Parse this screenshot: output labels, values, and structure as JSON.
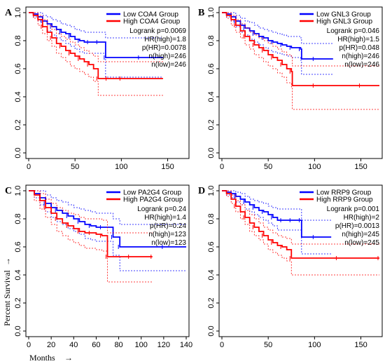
{
  "axis_titles": {
    "x": "Months",
    "y": "Percent Survival"
  },
  "colors": {
    "low": "#0000ff",
    "high": "#ff0000"
  },
  "chart_data": [
    {
      "type": "line",
      "panel": "A",
      "xlim": [
        0,
        170
      ],
      "ylim": [
        0,
        1
      ],
      "xticks": [
        0,
        50,
        100,
        150
      ],
      "yticks": [
        0.0,
        0.2,
        0.4,
        0.6,
        0.8,
        1.0
      ],
      "legend": [
        "Low COA4 Group",
        "High COA4 Group"
      ],
      "stats": [
        "Logrank p=0.0069",
        "HR(high)=1.8",
        "p(HR)=0.0078",
        "n(high)=246",
        "n(low)=246"
      ],
      "series": [
        {
          "name": "Low COA4 Group",
          "x": [
            0,
            5,
            10,
            15,
            20,
            25,
            30,
            35,
            40,
            45,
            50,
            55,
            60,
            65,
            70,
            75,
            82,
            83,
            100,
            120,
            145
          ],
          "y": [
            1.0,
            0.99,
            0.97,
            0.94,
            0.92,
            0.9,
            0.88,
            0.86,
            0.85,
            0.83,
            0.81,
            0.8,
            0.79,
            0.79,
            0.79,
            0.79,
            0.79,
            0.68,
            0.68,
            0.68,
            0.68
          ],
          "upper": [
            1.0,
            1.0,
            1.0,
            0.98,
            0.97,
            0.95,
            0.94,
            0.92,
            0.91,
            0.9,
            0.88,
            0.87,
            0.86,
            0.86,
            0.86,
            0.86,
            0.86,
            0.82,
            0.82,
            0.82,
            0.82
          ],
          "lower": [
            1.0,
            0.97,
            0.94,
            0.9,
            0.87,
            0.84,
            0.82,
            0.8,
            0.78,
            0.76,
            0.74,
            0.72,
            0.71,
            0.71,
            0.71,
            0.71,
            0.71,
            0.54,
            0.54,
            0.54,
            0.54
          ]
        },
        {
          "name": "High COA4 Group",
          "x": [
            0,
            5,
            10,
            15,
            20,
            25,
            30,
            35,
            40,
            45,
            50,
            55,
            60,
            65,
            70,
            75,
            80,
            85,
            90,
            100,
            145
          ],
          "y": [
            1.0,
            0.98,
            0.95,
            0.9,
            0.86,
            0.82,
            0.78,
            0.76,
            0.73,
            0.71,
            0.69,
            0.67,
            0.65,
            0.63,
            0.6,
            0.53,
            0.53,
            0.53,
            0.53,
            0.53,
            0.53
          ],
          "upper": [
            1.0,
            1.0,
            0.98,
            0.95,
            0.91,
            0.88,
            0.85,
            0.83,
            0.81,
            0.79,
            0.77,
            0.75,
            0.73,
            0.71,
            0.69,
            0.65,
            0.65,
            0.65,
            0.65,
            0.65,
            0.65
          ],
          "lower": [
            1.0,
            0.96,
            0.91,
            0.85,
            0.8,
            0.76,
            0.71,
            0.68,
            0.65,
            0.62,
            0.6,
            0.58,
            0.56,
            0.54,
            0.51,
            0.41,
            0.41,
            0.41,
            0.41,
            0.41,
            0.41
          ]
        }
      ]
    },
    {
      "type": "line",
      "panel": "B",
      "xlim": [
        0,
        170
      ],
      "ylim": [
        0,
        1
      ],
      "xticks": [
        0,
        50,
        100,
        150
      ],
      "yticks": [
        0.0,
        0.2,
        0.4,
        0.6,
        0.8,
        1.0
      ],
      "legend": [
        "Low GNL3 Group",
        "High GNL3 Group"
      ],
      "stats": [
        "Logrank p=0.046",
        "HR(high)=1.5",
        "p(HR)=0.048",
        "n(high)=246",
        "n(low)=246"
      ],
      "series": [
        {
          "name": "Low GNL3 Group",
          "x": [
            0,
            5,
            10,
            15,
            20,
            25,
            30,
            35,
            40,
            45,
            50,
            55,
            60,
            65,
            70,
            75,
            80,
            85,
            86,
            100,
            120
          ],
          "y": [
            1.0,
            0.99,
            0.97,
            0.94,
            0.91,
            0.89,
            0.87,
            0.85,
            0.83,
            0.82,
            0.8,
            0.79,
            0.78,
            0.77,
            0.76,
            0.75,
            0.75,
            0.74,
            0.67,
            0.67,
            0.67
          ],
          "upper": [
            1.0,
            1.0,
            1.0,
            0.98,
            0.96,
            0.94,
            0.93,
            0.91,
            0.89,
            0.88,
            0.87,
            0.86,
            0.85,
            0.84,
            0.83,
            0.83,
            0.83,
            0.82,
            0.78,
            0.78,
            0.78
          ],
          "lower": [
            1.0,
            0.97,
            0.94,
            0.9,
            0.86,
            0.84,
            0.81,
            0.79,
            0.77,
            0.75,
            0.73,
            0.72,
            0.71,
            0.7,
            0.69,
            0.68,
            0.68,
            0.66,
            0.56,
            0.56,
            0.56
          ]
        },
        {
          "name": "High GNL3 Group",
          "x": [
            0,
            5,
            10,
            15,
            20,
            25,
            30,
            35,
            40,
            45,
            50,
            55,
            60,
            65,
            70,
            75,
            76,
            100,
            125,
            150,
            170
          ],
          "y": [
            1.0,
            0.98,
            0.95,
            0.91,
            0.87,
            0.83,
            0.8,
            0.77,
            0.75,
            0.73,
            0.7,
            0.68,
            0.66,
            0.63,
            0.6,
            0.58,
            0.48,
            0.48,
            0.48,
            0.48,
            0.48
          ],
          "upper": [
            1.0,
            1.0,
            0.98,
            0.95,
            0.92,
            0.89,
            0.86,
            0.84,
            0.82,
            0.8,
            0.78,
            0.76,
            0.74,
            0.72,
            0.7,
            0.69,
            0.62,
            0.62,
            0.62,
            0.62,
            0.62
          ],
          "lower": [
            1.0,
            0.96,
            0.91,
            0.86,
            0.82,
            0.77,
            0.74,
            0.7,
            0.68,
            0.65,
            0.62,
            0.6,
            0.57,
            0.54,
            0.5,
            0.47,
            0.31,
            0.31,
            0.31,
            0.31,
            0.31
          ]
        }
      ]
    },
    {
      "type": "line",
      "panel": "C",
      "xlim": [
        0,
        140
      ],
      "ylim": [
        0,
        1
      ],
      "xticks": [
        0,
        20,
        40,
        60,
        80,
        100,
        120,
        140
      ],
      "yticks": [
        0.0,
        0.2,
        0.4,
        0.6,
        0.8,
        1.0
      ],
      "legend": [
        "Low PA2G4 Group",
        "High PA2G4 Group"
      ],
      "stats": [
        "Logrank p=0.24",
        "HR(high)=1.4",
        "p(HR)=0.24",
        "n(high)=123",
        "n(low)=123"
      ],
      "series": [
        {
          "name": "Low PA2G4 Group",
          "x": [
            0,
            5,
            10,
            15,
            20,
            25,
            30,
            35,
            40,
            45,
            50,
            55,
            60,
            65,
            70,
            75,
            80,
            81,
            100,
            120,
            140
          ],
          "y": [
            1.0,
            0.98,
            0.95,
            0.91,
            0.88,
            0.86,
            0.84,
            0.82,
            0.8,
            0.78,
            0.76,
            0.75,
            0.74,
            0.74,
            0.74,
            0.67,
            0.67,
            0.6,
            0.6,
            0.6,
            0.6
          ],
          "upper": [
            1.0,
            1.0,
            1.0,
            0.97,
            0.95,
            0.93,
            0.92,
            0.9,
            0.88,
            0.87,
            0.86,
            0.85,
            0.84,
            0.84,
            0.84,
            0.8,
            0.8,
            0.76,
            0.76,
            0.76,
            0.76
          ],
          "lower": [
            1.0,
            0.95,
            0.9,
            0.85,
            0.81,
            0.78,
            0.76,
            0.73,
            0.71,
            0.69,
            0.66,
            0.65,
            0.64,
            0.64,
            0.64,
            0.54,
            0.54,
            0.43,
            0.43,
            0.43,
            0.43
          ]
        },
        {
          "name": "High PA2G4 Group",
          "x": [
            0,
            5,
            10,
            15,
            20,
            25,
            30,
            35,
            40,
            45,
            50,
            55,
            60,
            65,
            69,
            70,
            80,
            90,
            100,
            110
          ],
          "y": [
            1.0,
            0.97,
            0.93,
            0.88,
            0.84,
            0.8,
            0.77,
            0.75,
            0.73,
            0.71,
            0.7,
            0.7,
            0.69,
            0.68,
            0.68,
            0.53,
            0.53,
            0.53,
            0.53,
            0.53
          ],
          "upper": [
            1.0,
            1.0,
            0.98,
            0.94,
            0.91,
            0.88,
            0.86,
            0.84,
            0.83,
            0.81,
            0.8,
            0.8,
            0.8,
            0.79,
            0.79,
            0.7,
            0.7,
            0.7,
            0.7,
            0.7
          ],
          "lower": [
            1.0,
            0.93,
            0.87,
            0.81,
            0.76,
            0.71,
            0.68,
            0.65,
            0.63,
            0.61,
            0.59,
            0.59,
            0.58,
            0.57,
            0.57,
            0.35,
            0.35,
            0.35,
            0.35,
            0.35
          ]
        }
      ]
    },
    {
      "type": "line",
      "panel": "D",
      "xlim": [
        0,
        170
      ],
      "ylim": [
        0,
        1
      ],
      "xticks": [
        0,
        50,
        100,
        150
      ],
      "yticks": [
        0.0,
        0.2,
        0.4,
        0.6,
        0.8,
        1.0
      ],
      "legend": [
        "Low RRP9 Group",
        "High RRP9 Group"
      ],
      "stats": [
        "Logrank p=0.001",
        "HR(high)=2",
        "p(HR)=0.0013",
        "n(high)=245",
        "n(low)=245"
      ],
      "series": [
        {
          "name": "Low RRP9 Group",
          "x": [
            0,
            5,
            10,
            15,
            20,
            25,
            30,
            35,
            40,
            45,
            50,
            55,
            60,
            65,
            70,
            75,
            80,
            85,
            86,
            100,
            118
          ],
          "y": [
            1.0,
            0.99,
            0.98,
            0.96,
            0.94,
            0.92,
            0.9,
            0.88,
            0.86,
            0.85,
            0.83,
            0.81,
            0.79,
            0.79,
            0.79,
            0.79,
            0.79,
            0.79,
            0.67,
            0.67,
            0.67
          ],
          "upper": [
            1.0,
            1.0,
            1.0,
            0.99,
            0.98,
            0.96,
            0.94,
            0.93,
            0.92,
            0.91,
            0.89,
            0.88,
            0.87,
            0.87,
            0.87,
            0.87,
            0.87,
            0.87,
            0.79,
            0.79,
            0.79
          ],
          "lower": [
            1.0,
            0.97,
            0.95,
            0.92,
            0.9,
            0.87,
            0.85,
            0.83,
            0.81,
            0.79,
            0.77,
            0.75,
            0.72,
            0.72,
            0.72,
            0.72,
            0.72,
            0.72,
            0.55,
            0.55,
            0.55
          ]
        },
        {
          "name": "High RRP9 Group",
          "x": [
            0,
            5,
            10,
            15,
            20,
            25,
            30,
            35,
            40,
            45,
            50,
            55,
            60,
            65,
            70,
            75,
            100,
            125,
            150,
            170
          ],
          "y": [
            1.0,
            0.98,
            0.94,
            0.89,
            0.85,
            0.81,
            0.77,
            0.74,
            0.71,
            0.68,
            0.65,
            0.63,
            0.61,
            0.6,
            0.58,
            0.52,
            0.52,
            0.52,
            0.52,
            0.52
          ],
          "upper": [
            1.0,
            1.0,
            0.97,
            0.93,
            0.9,
            0.86,
            0.83,
            0.8,
            0.77,
            0.74,
            0.72,
            0.7,
            0.68,
            0.67,
            0.66,
            0.62,
            0.62,
            0.62,
            0.62,
            0.62
          ],
          "lower": [
            1.0,
            0.96,
            0.91,
            0.85,
            0.8,
            0.76,
            0.71,
            0.68,
            0.65,
            0.62,
            0.58,
            0.56,
            0.54,
            0.52,
            0.5,
            0.4,
            0.4,
            0.4,
            0.4,
            0.4
          ]
        }
      ]
    }
  ]
}
